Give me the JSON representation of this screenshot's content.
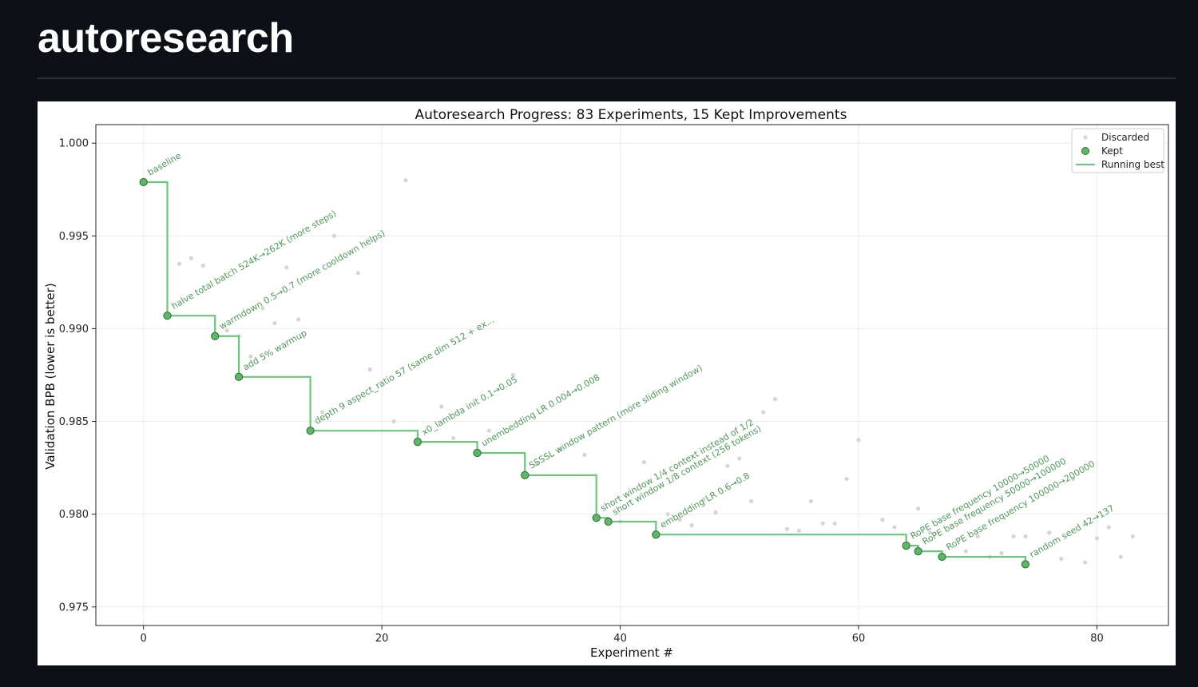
{
  "page": {
    "title": "autoresearch"
  },
  "chart_data": {
    "type": "scatter",
    "title": "Autoresearch Progress: 83 Experiments, 15 Kept Improvements",
    "xlabel": "Experiment #",
    "ylabel": "Validation BPB (lower is better)",
    "xlim": [
      -4,
      86
    ],
    "ylim": [
      0.974,
      1.001
    ],
    "xticks": [
      0,
      20,
      40,
      60,
      80
    ],
    "yticks": [
      0.975,
      0.98,
      0.985,
      0.99,
      0.995,
      1.0
    ],
    "ytick_labels": [
      "0.975",
      "0.980",
      "0.985",
      "0.990",
      "0.995",
      "1.000"
    ],
    "grid": true,
    "legend": {
      "position": "top-right",
      "entries": [
        "Discarded",
        "Kept",
        "Running best"
      ]
    },
    "colors": {
      "kept_fill": "#5cb865",
      "kept_edge": "#2e6b34",
      "running_best": "#6cc57a",
      "discarded": "#d5d5d5",
      "annotation": "#4f9a5a"
    },
    "series": [
      {
        "name": "Discarded",
        "points": [
          {
            "x": 3,
            "y": 0.9935
          },
          {
            "x": 4,
            "y": 0.9938
          },
          {
            "x": 5,
            "y": 0.9934
          },
          {
            "x": 7,
            "y": 0.9899
          },
          {
            "x": 8,
            "y": 0.9896
          },
          {
            "x": 9,
            "y": 0.9885
          },
          {
            "x": 10,
            "y": 0.9911
          },
          {
            "x": 11,
            "y": 0.9903
          },
          {
            "x": 12,
            "y": 0.9933
          },
          {
            "x": 13,
            "y": 0.9905
          },
          {
            "x": 15,
            "y": 0.9855
          },
          {
            "x": 16,
            "y": 0.995
          },
          {
            "x": 18,
            "y": 0.993
          },
          {
            "x": 19,
            "y": 0.9878
          },
          {
            "x": 21,
            "y": 0.985
          },
          {
            "x": 22,
            "y": 0.998
          },
          {
            "x": 25,
            "y": 0.9858
          },
          {
            "x": 26,
            "y": 0.9841
          },
          {
            "x": 29,
            "y": 0.9845
          },
          {
            "x": 31,
            "y": 0.9875
          },
          {
            "x": 33,
            "y": 0.9827
          },
          {
            "x": 35,
            "y": 0.9835
          },
          {
            "x": 37,
            "y": 0.9832
          },
          {
            "x": 40,
            "y": 0.9796
          },
          {
            "x": 42,
            "y": 0.9828
          },
          {
            "x": 44,
            "y": 0.98
          },
          {
            "x": 45,
            "y": 0.9797
          },
          {
            "x": 46,
            "y": 0.9794
          },
          {
            "x": 47,
            "y": 0.9808
          },
          {
            "x": 48,
            "y": 0.9801
          },
          {
            "x": 49,
            "y": 0.9826
          },
          {
            "x": 50,
            "y": 0.983
          },
          {
            "x": 51,
            "y": 0.9807
          },
          {
            "x": 52,
            "y": 0.9855
          },
          {
            "x": 53,
            "y": 0.9862
          },
          {
            "x": 54,
            "y": 0.9792
          },
          {
            "x": 55,
            "y": 0.9791
          },
          {
            "x": 56,
            "y": 0.9807
          },
          {
            "x": 57,
            "y": 0.9795
          },
          {
            "x": 58,
            "y": 0.9795
          },
          {
            "x": 59,
            "y": 0.9819
          },
          {
            "x": 60,
            "y": 0.984
          },
          {
            "x": 62,
            "y": 0.9797
          },
          {
            "x": 63,
            "y": 0.9793
          },
          {
            "x": 65,
            "y": 0.9803
          },
          {
            "x": 66,
            "y": 0.979
          },
          {
            "x": 69,
            "y": 0.978
          },
          {
            "x": 70,
            "y": 0.9788
          },
          {
            "x": 71,
            "y": 0.9777
          },
          {
            "x": 72,
            "y": 0.9779
          },
          {
            "x": 73,
            "y": 0.9788
          },
          {
            "x": 74,
            "y": 0.9788
          },
          {
            "x": 76,
            "y": 0.979
          },
          {
            "x": 77,
            "y": 0.9776
          },
          {
            "x": 78,
            "y": 0.9819
          },
          {
            "x": 79,
            "y": 0.9774
          },
          {
            "x": 80,
            "y": 0.9787
          },
          {
            "x": 81,
            "y": 0.9793
          },
          {
            "x": 82,
            "y": 0.9777
          },
          {
            "x": 83,
            "y": 0.9788
          }
        ]
      },
      {
        "name": "Kept",
        "points": [
          {
            "x": 0,
            "y": 0.9979,
            "label": "baseline"
          },
          {
            "x": 2,
            "y": 0.9907,
            "label": "halve total batch 524K→262K (more steps)"
          },
          {
            "x": 6,
            "y": 0.9896,
            "label": "warmdown 0.5→0.7 (more cooldown helps)"
          },
          {
            "x": 8,
            "y": 0.9874,
            "label": "add 5% warmup"
          },
          {
            "x": 14,
            "y": 0.9845,
            "label": "depth 9 aspect_ratio 57 (same dim 512 + ex..."
          },
          {
            "x": 23,
            "y": 0.9839,
            "label": "x0_lambda init 0.1→0.05"
          },
          {
            "x": 28,
            "y": 0.9833,
            "label": "unembedding LR 0.004→0.008"
          },
          {
            "x": 32,
            "y": 0.9821,
            "label": "SSSSL window pattern (more sliding window)"
          },
          {
            "x": 38,
            "y": 0.9798,
            "label": "short window 1/4 context instead of 1/2"
          },
          {
            "x": 39,
            "y": 0.9796,
            "label": "short window 1/8 context (256 tokens)"
          },
          {
            "x": 43,
            "y": 0.9789,
            "label": "embedding LR 0.6→0.8"
          },
          {
            "x": 64,
            "y": 0.9783,
            "label": "RoPE base frequency 10000→50000"
          },
          {
            "x": 65,
            "y": 0.978,
            "label": "RoPE base frequency 50000→100000"
          },
          {
            "x": 67,
            "y": 0.9777,
            "label": "RoPE base frequency 100000→200000"
          },
          {
            "x": 74,
            "y": 0.9773,
            "label": "random seed 42→137"
          }
        ]
      },
      {
        "name": "Running best",
        "step": "post"
      }
    ]
  }
}
